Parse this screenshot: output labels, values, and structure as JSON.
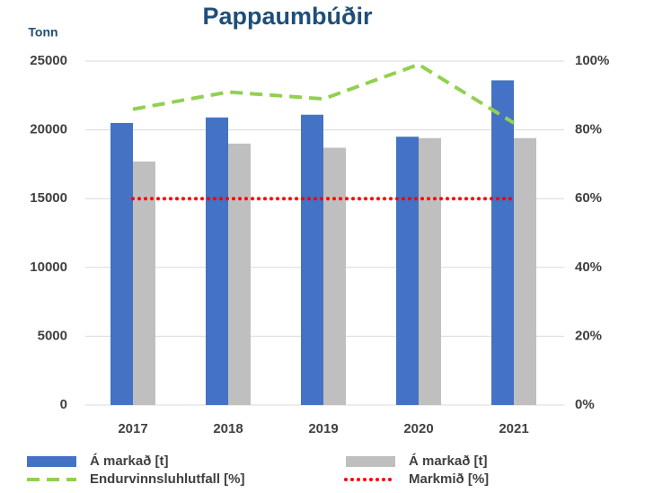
{
  "chart_data": {
    "type": "bar",
    "title": "Pappaumbúðir",
    "y_label": "Tonn",
    "categories": [
      "2017",
      "2018",
      "2019",
      "2020",
      "2021"
    ],
    "series": [
      {
        "name": "Á markað [t]",
        "type": "bar",
        "color": "#4472c4",
        "values": [
          20500,
          20900,
          21100,
          19500,
          23600
        ]
      },
      {
        "name": "Á markað [t]",
        "type": "bar",
        "color": "#bfbfbf",
        "values": [
          17700,
          19000,
          18700,
          19400,
          19400
        ]
      },
      {
        "name": "Endurvinnsluhlutfall [%]",
        "type": "line",
        "style": "dashed",
        "axis": "y2",
        "color": "#92d050",
        "values": [
          86,
          91,
          89,
          99,
          82
        ]
      },
      {
        "name": "Markmið [%]",
        "type": "line",
        "style": "dotted",
        "axis": "y2",
        "color": "#ff0000",
        "values": [
          60,
          60,
          60,
          60,
          60
        ]
      }
    ],
    "ylim": [
      0,
      25000
    ],
    "yticks": [
      0,
      5000,
      10000,
      15000,
      20000,
      25000
    ],
    "y2lim": [
      0,
      100
    ],
    "y2ticks": [
      {
        "value": 0,
        "label": "0%"
      },
      {
        "value": 20,
        "label": "20%"
      },
      {
        "value": 40,
        "label": "40%"
      },
      {
        "value": 60,
        "label": "60%"
      },
      {
        "value": 80,
        "label": "80%"
      },
      {
        "value": 100,
        "label": "100%"
      }
    ],
    "grid": true
  }
}
